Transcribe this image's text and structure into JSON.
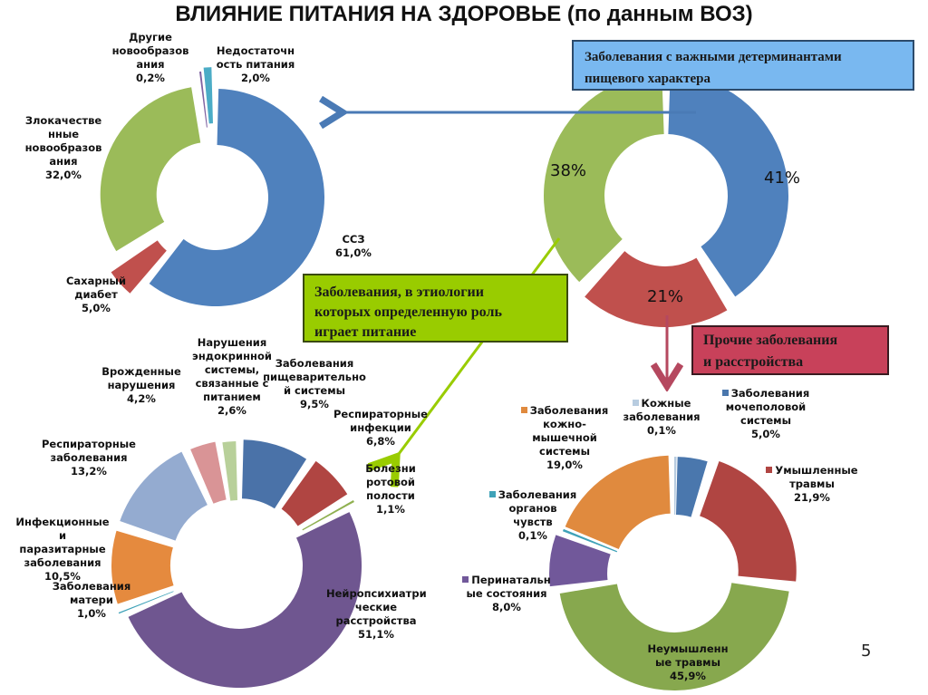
{
  "title": "ВЛИЯНИЕ ПИТАНИЯ НА ЗДОРОВЬЕ (по данным ВОЗ)",
  "page_number": "5",
  "boxes": {
    "blue": "Заболевания с важными детерминантами\nпищевого характера",
    "green": "Заболевания, в этиологии\nкоторых определенную роль\nиграет питание",
    "red": "Прочие заболевания\nи расстройства"
  },
  "colors": {
    "blue": "#4f81bd",
    "red": "#c0504d",
    "green": "#9bbb59",
    "purple": "#8064a2",
    "teal": "#4bacc6",
    "orange": "#f79646",
    "arrow_blue": "#4a7ab5",
    "arrow_green": "#99cc00",
    "arrow_red": "#b5485f"
  },
  "chart_data": [
    {
      "id": "center",
      "type": "pie",
      "title": "Заболевания с важными детерминантами пищевого характера",
      "categories": [
        "Заболевания с важными детерминантами пищевого характера",
        "Прочие заболевания и расстройства",
        "Заболевания, в этиологии которых определенную роль играет питание"
      ],
      "values": [
        41,
        21,
        38
      ],
      "labels": [
        "41%",
        "21%",
        "38%"
      ],
      "colors": [
        "#4f81bd",
        "#c0504d",
        "#9bbb59"
      ]
    },
    {
      "id": "top_left",
      "type": "pie",
      "title": "Заболевания с важными детерминантами пищевого характера",
      "categories": [
        "ССЗ",
        "Сахарный диабет",
        "Злокачественные новообразования",
        "Другие новообразования",
        "Недостаточность питания"
      ],
      "values": [
        61.0,
        5.0,
        32.0,
        0.2,
        2.0
      ],
      "labels": [
        "ССЗ\n61,0%",
        "Сахарный\nдиабет\n5,0%",
        "Злокачестве\nнные\nновообразов\nания\n32,0%",
        "Другие\nновообразов\nания\n0,2%",
        "Недостаточн\nость питания\n2,0%"
      ],
      "colors": [
        "#4f81bd",
        "#c0504d",
        "#9bbb59",
        "#8064a2",
        "#4bacc6"
      ]
    },
    {
      "id": "bottom_left",
      "type": "pie",
      "title": "Заболевания, в этиологии которых определенную роль играет питание",
      "categories": [
        "Заболевания пищеварительной системы",
        "Респираторные инфекции",
        "Болезни ротовой полости",
        "Нейропсихиатрические расстройства",
        "Заболевания матери",
        "Инфекционные и паразитарные заболевания",
        "Респираторные заболевания",
        "Врожденные нарушения",
        "Нарушения эндокринной системы, связанные с питанием"
      ],
      "values": [
        9.5,
        6.8,
        1.1,
        51.1,
        1.0,
        10.5,
        13.2,
        4.2,
        2.6
      ],
      "labels": [
        "Заболевания\nпищеварительно\nй системы\n9,5%",
        "Респираторные\nинфекции\n6,8%",
        "Болезни\nротовой\nполости\n1,1%",
        "Нейропсихиатри\nческие\nрасстройства\n51,1%",
        "Заболевания\nматери\n1,0%",
        "Инфекционные\nи паразитарные\nзаболевания\n10,5%",
        "Респираторные\nзаболевания\n13,2%",
        "Врожденные\nнарушения\n4,2%",
        "Нарушения\nэндокринной\nсистемы,\nсвязанные с\nпитанием\n2,6%"
      ],
      "colors": [
        "#4a72a8",
        "#b04542",
        "#8fb050",
        "#6f5690",
        "#3fa2b8",
        "#e58a3e",
        "#94abd0",
        "#d99496",
        "#b8d09a"
      ]
    },
    {
      "id": "bottom_right",
      "type": "pie",
      "title": "Прочие заболевания и расстройства",
      "categories": [
        "Заболевания мочеполовой системы",
        "Умышленные травмы",
        "Неумышленные травмы",
        "Перинатальные состояния",
        "Заболевания органов чувств",
        "Заболевания кожно-мышечной системы",
        "Кожные заболевания"
      ],
      "values": [
        5.0,
        21.9,
        45.9,
        8.0,
        0.1,
        19.0,
        0.1
      ],
      "labels": [
        "Заболевания\nмочеполовой\nсистемы\n5,0%",
        "Умышленные\nтравмы\n21,9%",
        "Неумышленн\nые травмы\n45,9%",
        "Перинатальн\nые состояния\n8,0%",
        "Заболевания\nорганов\nчувств\n0,1%",
        "Заболевания\nкожно-\nмышечной\nсистемы\n19,0%",
        "Кожные\nзаболевания\n0,1%"
      ],
      "colors": [
        "#4a77ad",
        "#b04542",
        "#87a84e",
        "#71589a",
        "#3fa2b8",
        "#e08a3e",
        "#b8cce0"
      ]
    }
  ]
}
